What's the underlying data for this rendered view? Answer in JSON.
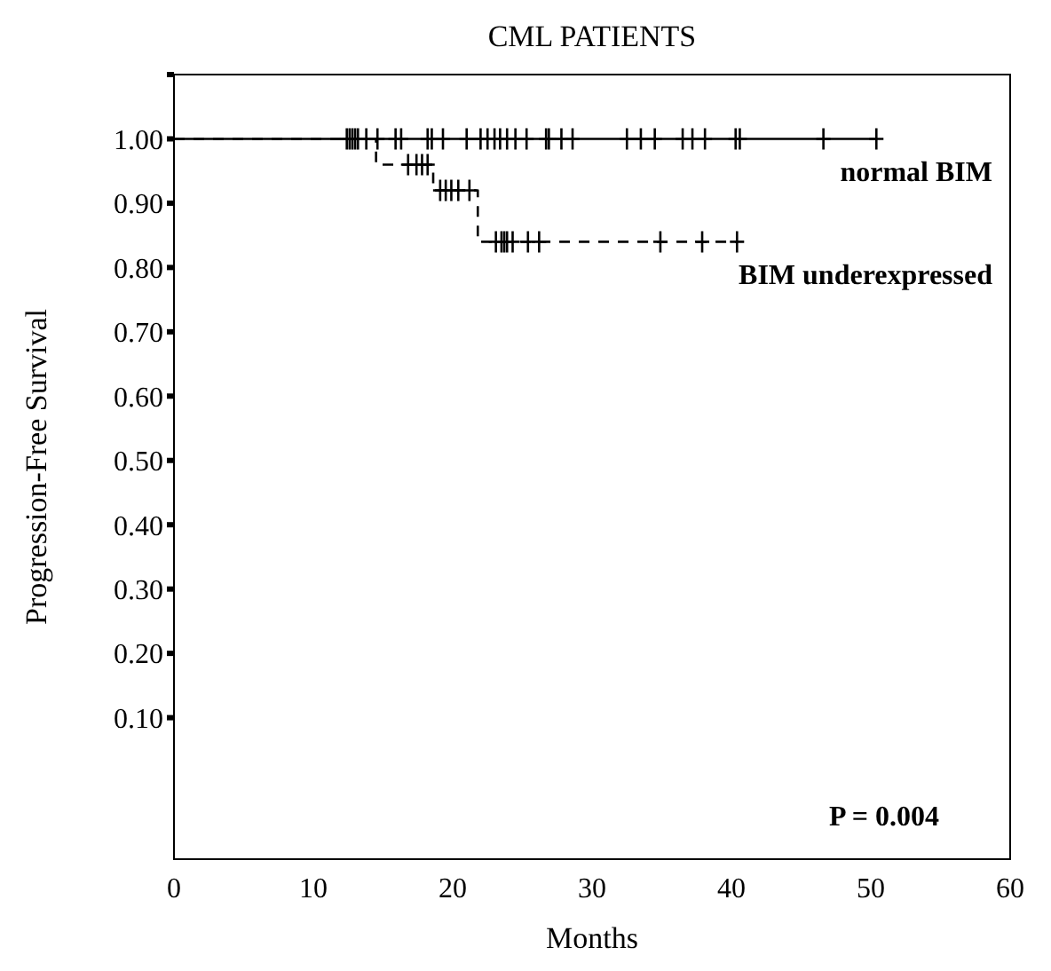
{
  "chart_data": {
    "type": "step",
    "title": "CML PATIENTS",
    "xlabel": "Months",
    "ylabel": "Progression-Free Survival",
    "xlim": [
      0,
      60
    ],
    "xticks": [
      0,
      10,
      20,
      30,
      40,
      50,
      60
    ],
    "ylim": [
      -0.12,
      1.1
    ],
    "yticks": [
      {
        "value": 0.1,
        "label": "0.10"
      },
      {
        "value": 0.2,
        "label": "0.20"
      },
      {
        "value": 0.3,
        "label": "0.30"
      },
      {
        "value": 0.4,
        "label": "0.40"
      },
      {
        "value": 0.5,
        "label": "0.50"
      },
      {
        "value": 0.6,
        "label": "0.60"
      },
      {
        "value": 0.7,
        "label": "0.70"
      },
      {
        "value": 0.8,
        "label": "0.80"
      },
      {
        "value": 0.9,
        "label": "0.90"
      },
      {
        "value": 1,
        "label": "1.00"
      },
      {
        "value": 1.1,
        "label": null
      }
    ],
    "grid": false,
    "legend": false,
    "annotations": [
      "P = 0.004"
    ],
    "series": [
      {
        "name": "normal BIM",
        "color": "#000000",
        "line_style": "solid",
        "x": [
          0,
          50.4
        ],
        "values": [
          1,
          1
        ]
      },
      {
        "name": "BIM underexpressed",
        "color": "#000000",
        "line_style": "dashed",
        "x": [
          0,
          14.5,
          18.6,
          21.8,
          40.4
        ],
        "values": [
          1,
          0.96,
          0.92,
          0.84,
          0.84
        ]
      },
      {
        "type": "scatter",
        "marker": "cross",
        "color": "#000000",
        "x": [
          12.4,
          12.6,
          12.8,
          13.0,
          13.2,
          13.8,
          14.6,
          15.9,
          16.3,
          18.2,
          18.5,
          19.3,
          21.0,
          22.0,
          22.5,
          23.0,
          23.4,
          23.9,
          24.5,
          25.3,
          26.7,
          26.9,
          27.8,
          28.6,
          32.5,
          33.5,
          34.5,
          36.5,
          37.2,
          38.1,
          40.3,
          40.6,
          46.6,
          50.4
        ],
        "values": [
          1,
          1,
          1,
          1,
          1,
          1,
          1,
          1,
          1,
          1,
          1,
          1,
          1,
          1,
          1,
          1,
          1,
          1,
          1,
          1,
          1,
          1,
          1,
          1,
          1,
          1,
          1,
          1,
          1,
          1,
          1,
          1,
          1,
          1
        ]
      },
      {
        "type": "scatter",
        "marker": "cross",
        "color": "#000000",
        "x": [
          16.8,
          17.4,
          17.8,
          18.2,
          19.1,
          19.5,
          19.9,
          20.4,
          21.2,
          23.1,
          23.5,
          23.7,
          23.9,
          24.3,
          25.4,
          26.2,
          34.9,
          37.9,
          40.4
        ],
        "values": [
          0.96,
          0.96,
          0.96,
          0.96,
          0.92,
          0.92,
          0.92,
          0.92,
          0.92,
          0.84,
          0.84,
          0.84,
          0.84,
          0.84,
          0.84,
          0.84,
          0.84,
          0.84,
          0.84
        ]
      }
    ]
  }
}
